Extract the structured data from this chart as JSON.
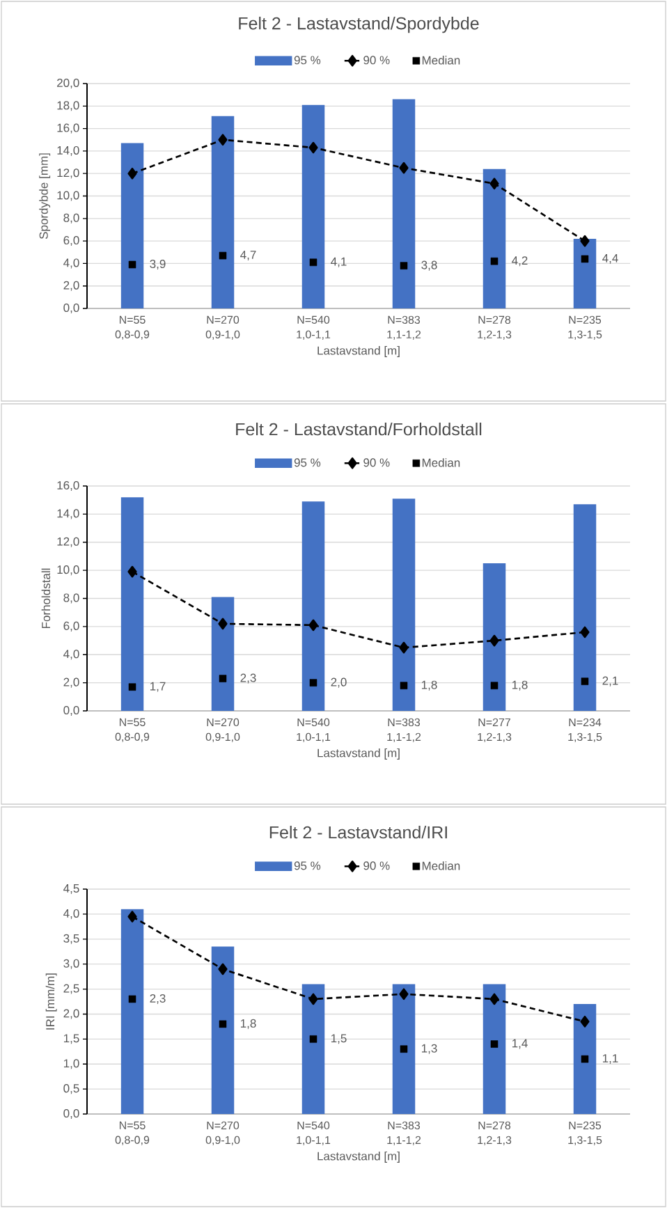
{
  "chart_data": [
    {
      "type": "bar",
      "title": "Felt 2 - Lastavstand/Spordybde",
      "xlabel": "Lastavstand [m]",
      "ylabel": "Spordybde [mm]",
      "categories": [
        "N=55 0,8-0,9",
        "N=270 0,9-1,0",
        "N=540 1,0-1,1",
        "N=383 1,1-1,2",
        "N=278 1,2-1,3",
        "N=235 1,3-1,5"
      ],
      "series": [
        {
          "name": "95 %",
          "type": "bar",
          "color": "#4472c4",
          "values": [
            14.7,
            17.1,
            18.1,
            18.6,
            12.4,
            6.2
          ]
        },
        {
          "name": "90 %",
          "type": "line",
          "color": "#000000",
          "marker": "diamond",
          "line_style": "dashed",
          "values": [
            12.0,
            15.0,
            14.3,
            12.5,
            11.1,
            6.0
          ]
        },
        {
          "name": "Median",
          "type": "scatter",
          "color": "#000000",
          "marker": "square",
          "values": [
            3.9,
            4.7,
            4.1,
            3.8,
            4.2,
            4.4
          ],
          "value_labels": [
            "3,9",
            "4,7",
            "4,1",
            "3,8",
            "4,2",
            "4,4"
          ]
        }
      ],
      "ylim": [
        0,
        20
      ],
      "yticks": [
        {
          "value": 0,
          "label": "0,0"
        },
        {
          "value": 2,
          "label": "2,0"
        },
        {
          "value": 4,
          "label": "4,0"
        },
        {
          "value": 6,
          "label": "6,0"
        },
        {
          "value": 8,
          "label": "8,0"
        },
        {
          "value": 10,
          "label": "10,0"
        },
        {
          "value": 12,
          "label": "12,0"
        },
        {
          "value": 14,
          "label": "14,0"
        },
        {
          "value": 16,
          "label": "16,0"
        },
        {
          "value": 18,
          "label": "18,0"
        },
        {
          "value": 20,
          "label": "20,0"
        }
      ],
      "grid": "y",
      "legend": "top"
    },
    {
      "type": "bar",
      "title": "Felt 2 - Lastavstand/Forholdstall",
      "xlabel": "Lastavstand [m]",
      "ylabel": "Forholdstall",
      "categories": [
        "N=55 0,8-0,9",
        "N=270 0,9-1,0",
        "N=540 1,0-1,1",
        "N=383 1,1-1,2",
        "N=277 1,2-1,3",
        "N=234 1,3-1,5"
      ],
      "series": [
        {
          "name": "95 %",
          "type": "bar",
          "color": "#4472c4",
          "values": [
            15.2,
            8.1,
            14.9,
            15.1,
            10.5,
            14.7
          ]
        },
        {
          "name": "90 %",
          "type": "line",
          "color": "#000000",
          "marker": "diamond",
          "line_style": "dashed",
          "values": [
            9.9,
            6.2,
            6.1,
            4.5,
            5.0,
            5.6
          ]
        },
        {
          "name": "Median",
          "type": "scatter",
          "color": "#000000",
          "marker": "square",
          "values": [
            1.7,
            2.3,
            2.0,
            1.8,
            1.8,
            2.1
          ],
          "value_labels": [
            "1,7",
            "2,3",
            "2,0",
            "1,8",
            "1,8",
            "2,1"
          ]
        }
      ],
      "ylim": [
        0,
        16
      ],
      "yticks": [
        {
          "value": 0,
          "label": "0,0"
        },
        {
          "value": 2,
          "label": "2,0"
        },
        {
          "value": 4,
          "label": "4,0"
        },
        {
          "value": 6,
          "label": "6,0"
        },
        {
          "value": 8,
          "label": "8,0"
        },
        {
          "value": 10,
          "label": "10,0"
        },
        {
          "value": 12,
          "label": "12,0"
        },
        {
          "value": 14,
          "label": "14,0"
        },
        {
          "value": 16,
          "label": "16,0"
        }
      ],
      "grid": "y",
      "legend": "top"
    },
    {
      "type": "bar",
      "title": "Felt 2 - Lastavstand/IRI",
      "xlabel": "Lastavstand [m]",
      "ylabel": "IRI [mm/m]",
      "categories": [
        "N=55 0,8-0,9",
        "N=270 0,9-1,0",
        "N=540 1,0-1,1",
        "N=383 1,1-1,2",
        "N=278 1,2-1,3",
        "N=235 1,3-1,5"
      ],
      "series": [
        {
          "name": "95 %",
          "type": "bar",
          "color": "#4472c4",
          "values": [
            4.1,
            3.35,
            2.6,
            2.6,
            2.6,
            2.2
          ]
        },
        {
          "name": "90 %",
          "type": "line",
          "color": "#000000",
          "marker": "diamond",
          "line_style": "dashed",
          "values": [
            3.95,
            2.9,
            2.3,
            2.4,
            2.3,
            1.85
          ]
        },
        {
          "name": "Median",
          "type": "scatter",
          "color": "#000000",
          "marker": "square",
          "values": [
            2.3,
            1.8,
            1.5,
            1.3,
            1.4,
            1.1
          ],
          "value_labels": [
            "2,3",
            "1,8",
            "1,5",
            "1,3",
            "1,4",
            "1,1"
          ]
        }
      ],
      "ylim": [
        0,
        4.5
      ],
      "yticks": [
        {
          "value": 0,
          "label": "0,0"
        },
        {
          "value": 0.5,
          "label": "0,5"
        },
        {
          "value": 1,
          "label": "1,0"
        },
        {
          "value": 1.5,
          "label": "1,5"
        },
        {
          "value": 2,
          "label": "2,0"
        },
        {
          "value": 2.5,
          "label": "2,5"
        },
        {
          "value": 3,
          "label": "3,0"
        },
        {
          "value": 3.5,
          "label": "3,5"
        },
        {
          "value": 4,
          "label": "4,0"
        },
        {
          "value": 4.5,
          "label": "4,5"
        }
      ],
      "grid": "y",
      "legend": "top"
    }
  ]
}
